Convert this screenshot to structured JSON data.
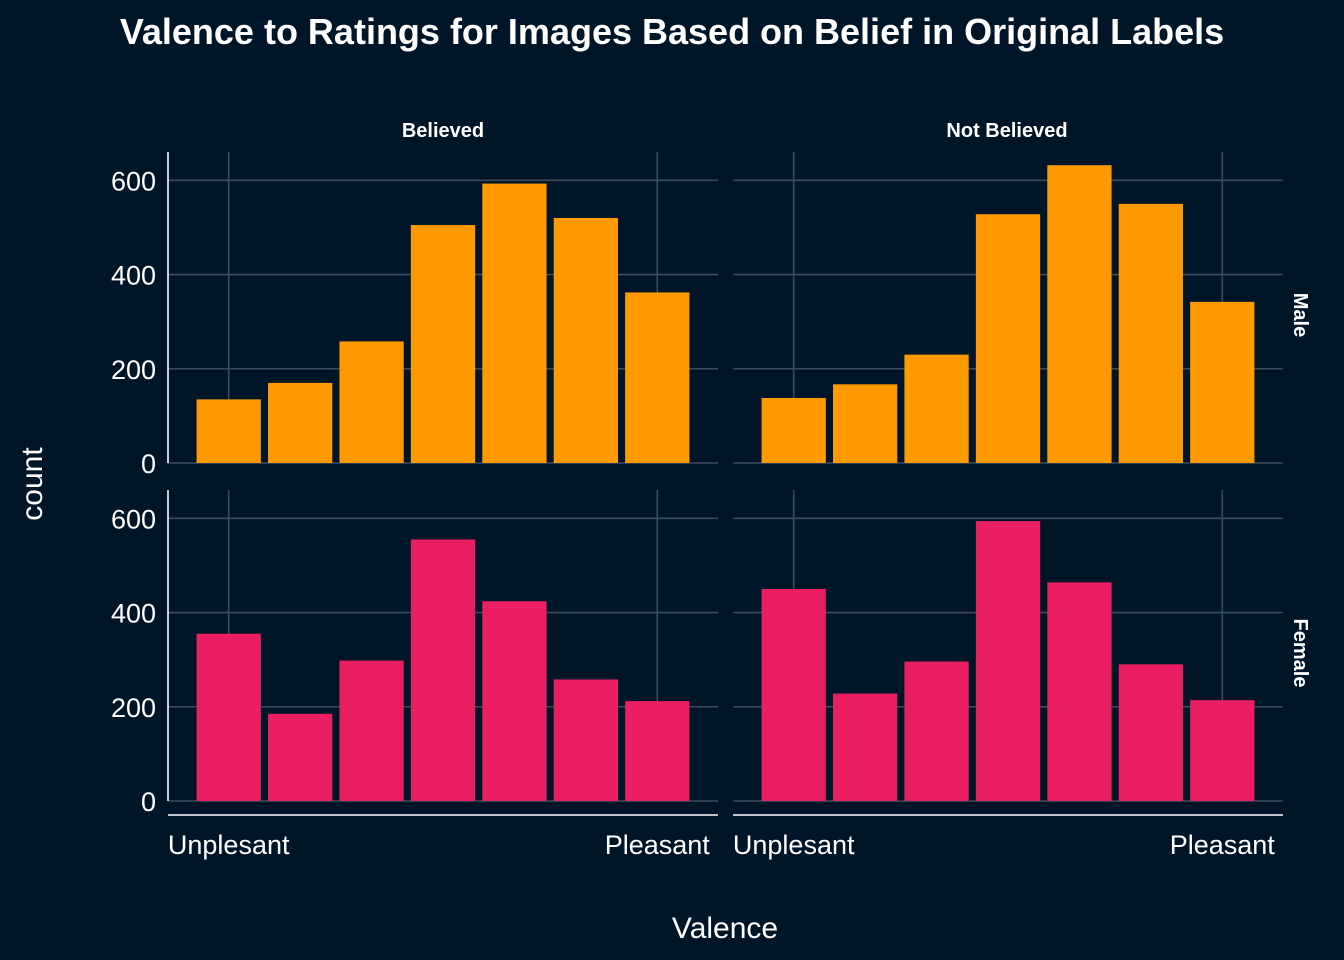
{
  "chart_data": {
    "type": "bar",
    "title": "Valence to Ratings for Images Based on Belief in Original Labels",
    "xlabel": "Valence",
    "ylabel": "count",
    "x_tick_labels": [
      "Unplesant",
      "Pleasant"
    ],
    "x_range": [
      1,
      7
    ],
    "ylim": [
      0,
      660
    ],
    "y_ticks": [
      0,
      200,
      400,
      600
    ],
    "grid": true,
    "columns": [
      "Believed",
      "Not Believed"
    ],
    "rows": [
      "Male",
      "Female"
    ],
    "colors": {
      "Male": "#ff9900",
      "Female": "#e91e63"
    },
    "panels": [
      {
        "column": "Believed",
        "row": "Male",
        "values": [
          135,
          170,
          258,
          505,
          593,
          520,
          362
        ]
      },
      {
        "column": "Not Believed",
        "row": "Male",
        "values": [
          138,
          167,
          230,
          528,
          632,
          550,
          342
        ]
      },
      {
        "column": "Believed",
        "row": "Female",
        "values": [
          355,
          185,
          298,
          555,
          424,
          258,
          212
        ]
      },
      {
        "column": "Not Believed",
        "row": "Female",
        "values": [
          450,
          228,
          296,
          594,
          464,
          290,
          214
        ]
      }
    ]
  }
}
